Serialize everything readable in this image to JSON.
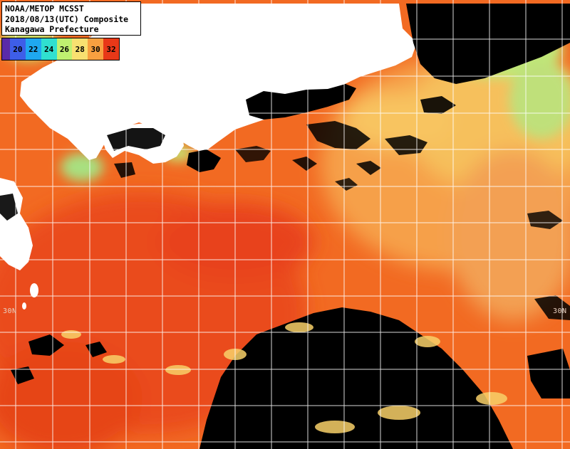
{
  "title": {
    "line1": "NOAA/METOP MCSST",
    "line2": "2018/08/13(UTC) Composite",
    "line3": "Kanagawa Prefecture"
  },
  "legend": {
    "labels": [
      "",
      "20",
      "22",
      "24",
      "26",
      "28",
      "30",
      "32"
    ],
    "colors": [
      "#5a2aa8",
      "#3e5ee8",
      "#1fa8f0",
      "#30e0d0",
      "#bff070",
      "#f8e070",
      "#f8a040",
      "#e83818"
    ]
  },
  "grid_labels": {
    "left": "30N",
    "right": "30N"
  },
  "colors": {
    "sea_warm": "#f26a22",
    "sea_hot": "#e8421a",
    "sea_mild": "#f8a040",
    "sea_yellow": "#f6c860",
    "sea_green": "#b8e878",
    "land": "#ffffff",
    "cloud": "#000000",
    "grid": "#ffffff"
  }
}
